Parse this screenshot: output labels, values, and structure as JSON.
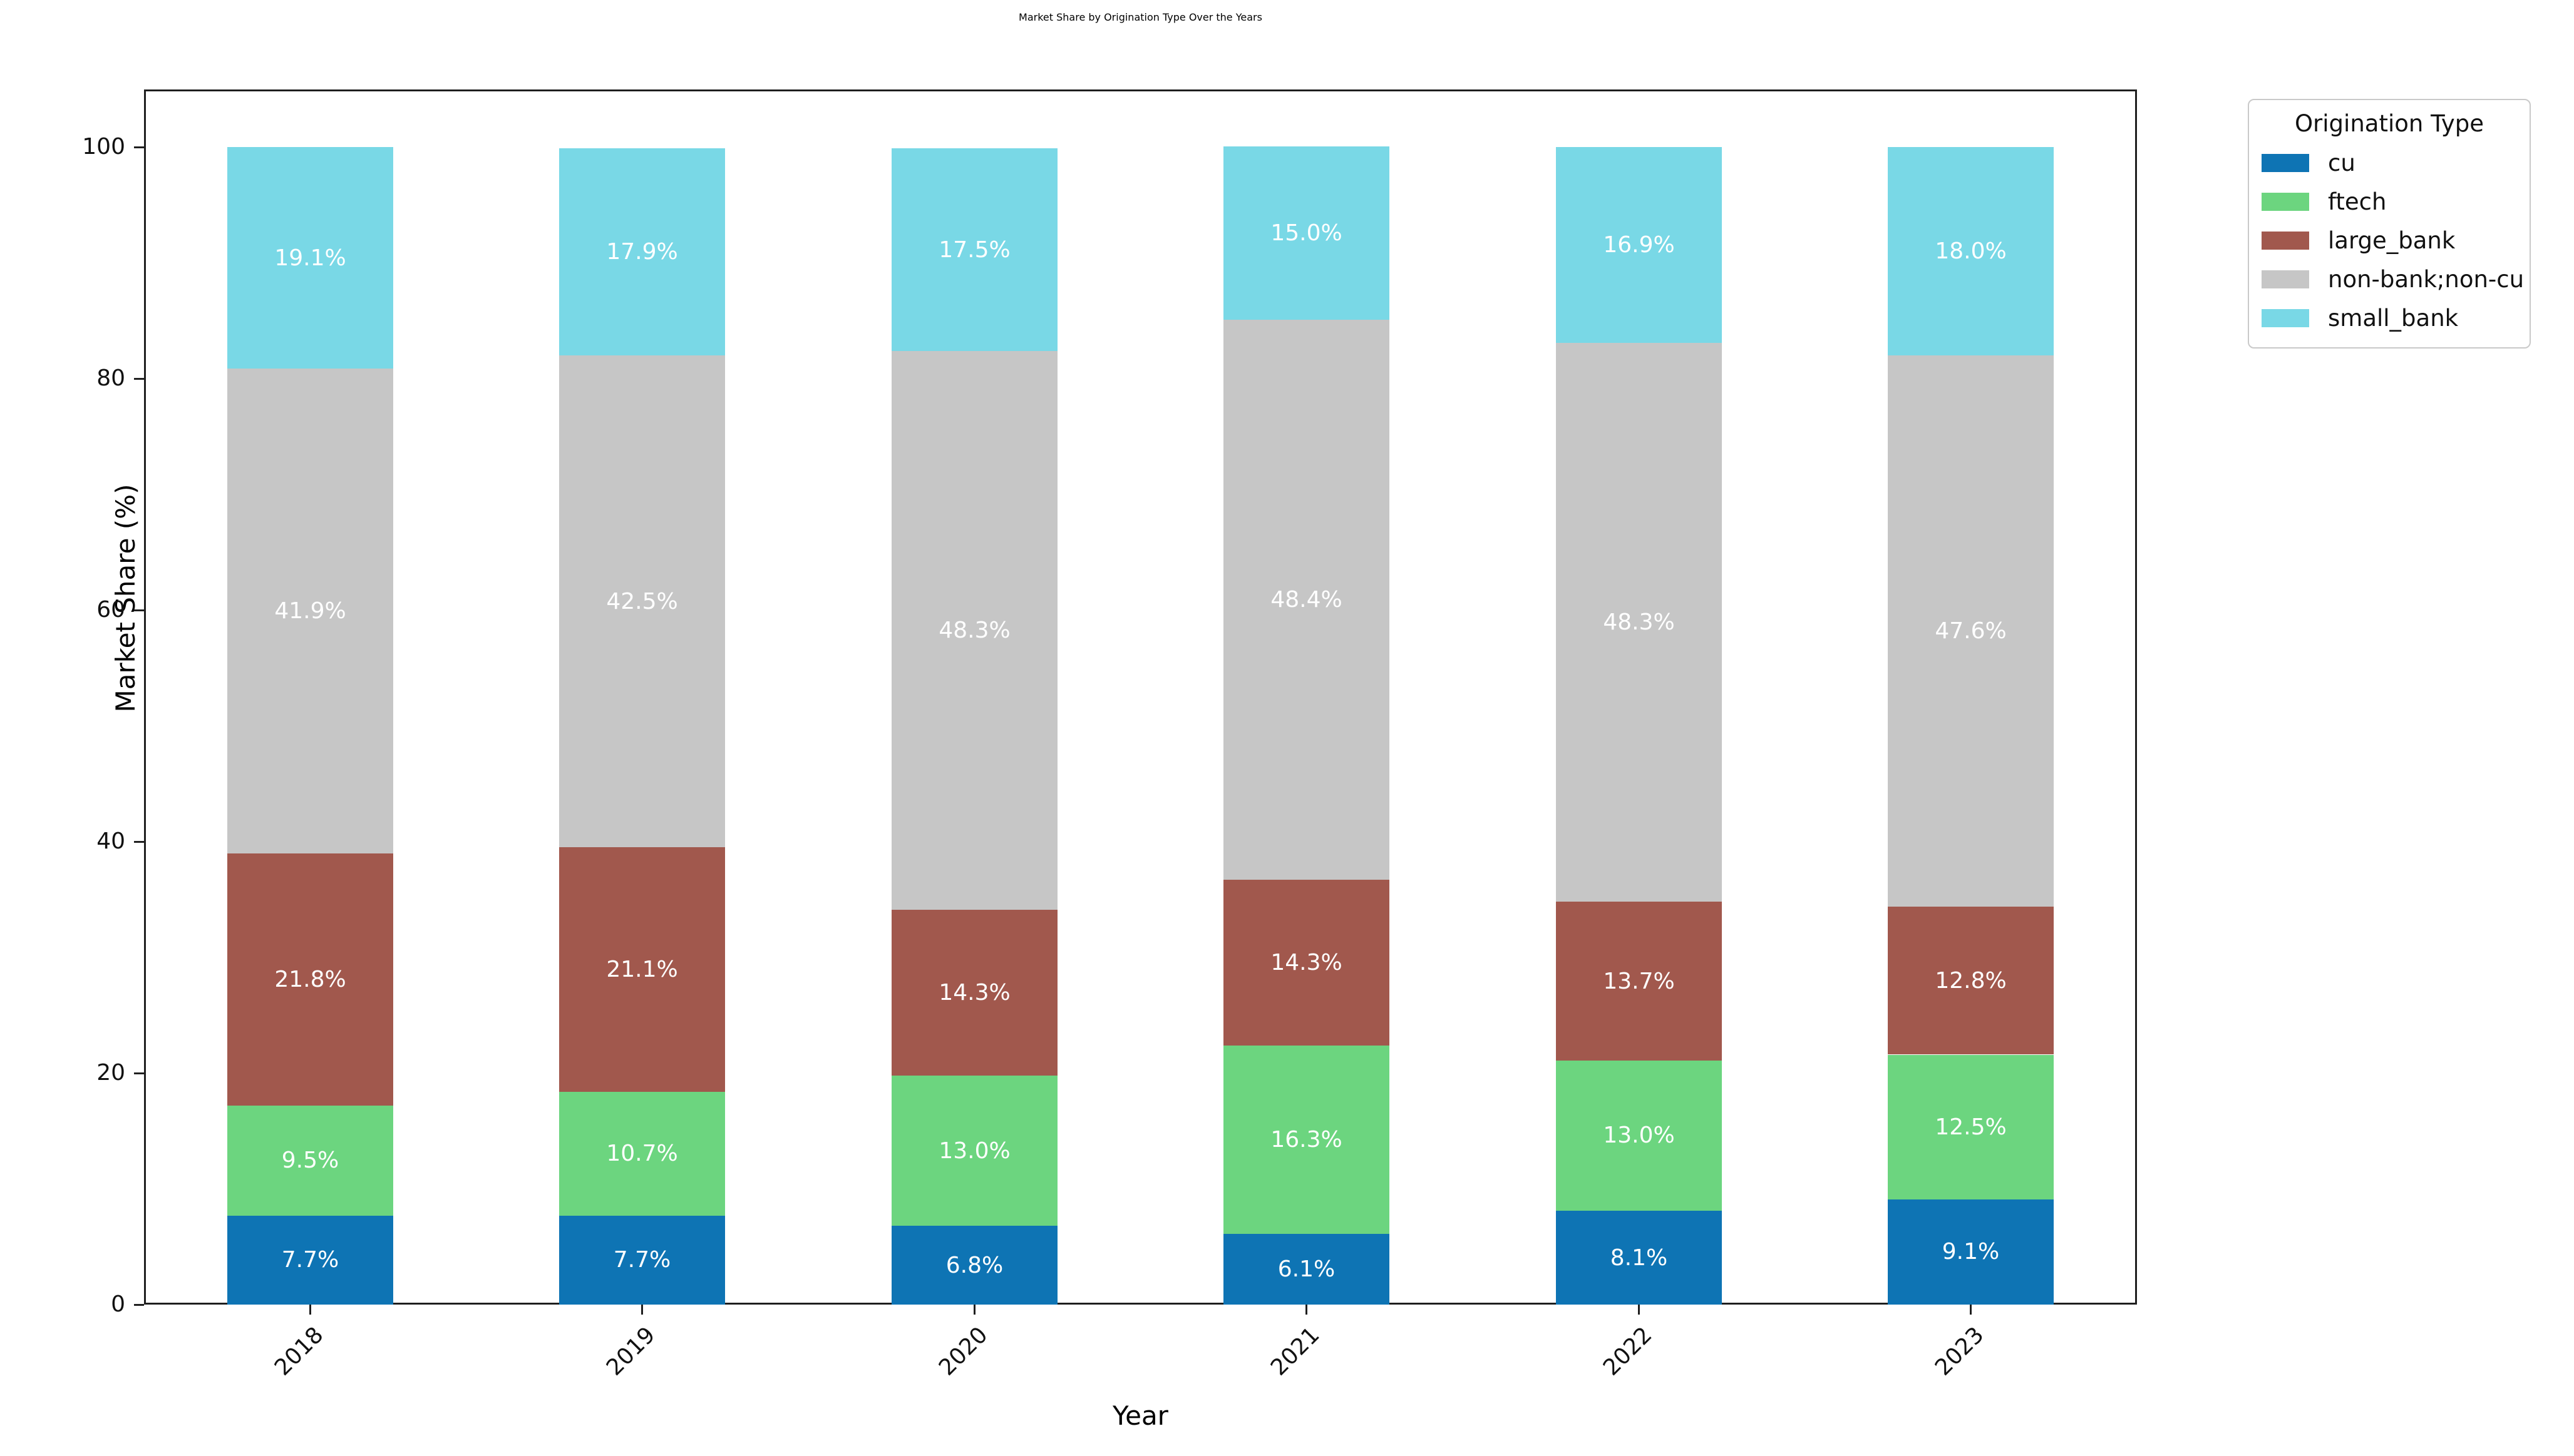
{
  "title": "Market Share by Origination Type Over the Years",
  "axes": {
    "x_label": "Year",
    "y_label": "Market Share (%)"
  },
  "legend": {
    "title": "Origination Type"
  },
  "chart_data": {
    "type": "bar",
    "stacked": true,
    "title": "Market Share by Origination Type Over the Years",
    "xlabel": "Year",
    "ylabel": "Market Share (%)",
    "categories": [
      "2018",
      "2019",
      "2020",
      "2021",
      "2022",
      "2023"
    ],
    "series": [
      {
        "name": "cu",
        "color": "#0e74b4",
        "values": [
          7.7,
          7.7,
          6.8,
          6.1,
          8.1,
          9.1
        ],
        "labels": [
          "7.7%",
          "7.7%",
          "6.8%",
          "6.1%",
          "8.1%",
          "9.1%"
        ]
      },
      {
        "name": "ftech",
        "color": "#6cd57f",
        "values": [
          9.5,
          10.7,
          13.0,
          16.3,
          13.0,
          12.5
        ],
        "labels": [
          "9.5%",
          "10.7%",
          "13.0%",
          "16.3%",
          "13.0%",
          "12.5%"
        ]
      },
      {
        "name": "large_bank",
        "color": "#a1584d",
        "values": [
          21.8,
          21.1,
          14.3,
          14.3,
          13.7,
          12.8
        ],
        "labels": [
          "21.8%",
          "21.1%",
          "14.3%",
          "14.3%",
          "13.7%",
          "12.8%"
        ]
      },
      {
        "name": "non-bank;non-cu",
        "color": "#c6c6c6",
        "values": [
          41.9,
          42.5,
          48.3,
          48.4,
          48.3,
          47.6
        ],
        "labels": [
          "41.9%",
          "42.5%",
          "48.3%",
          "48.4%",
          "48.3%",
          "47.6%"
        ]
      },
      {
        "name": "small_bank",
        "color": "#79d8e6",
        "values": [
          19.1,
          17.9,
          17.5,
          15.0,
          16.9,
          18.0
        ],
        "labels": [
          "19.1%",
          "17.9%",
          "17.5%",
          "15.0%",
          "16.9%",
          "18.0%"
        ]
      }
    ],
    "y_ticks": [
      0,
      20,
      40,
      60,
      80,
      100
    ],
    "ylim": [
      0,
      105
    ],
    "bar_width": 0.5,
    "x_tick_rotation": 45,
    "grid": false,
    "legend_position": "outside upper right",
    "bar_label_color": "#ffffff"
  }
}
